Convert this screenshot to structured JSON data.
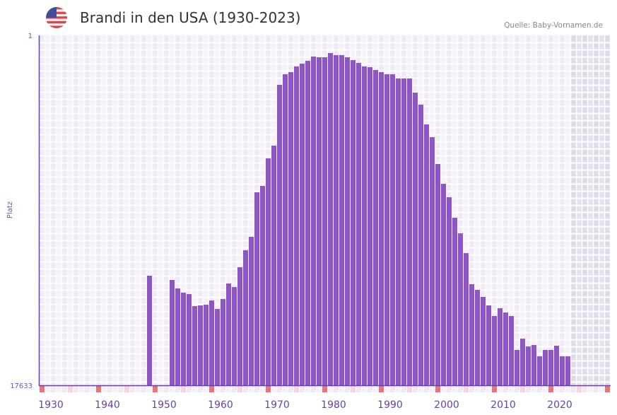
{
  "header": {
    "title": "Brandi in den USA (1930-2023)",
    "source": "Quelle: Baby-Vornamen.de",
    "flag_icon": "us-flag-icon"
  },
  "colors": {
    "bar": "#8e55c7",
    "axis": "#6a3fa8",
    "decade_marker": "#e8747c",
    "half_decade_marker": "#f5d5de",
    "future_shade": "#e2dcec"
  },
  "chart_data": {
    "type": "bar",
    "title": "Brandi in den USA (1930-2023)",
    "xlabel": "",
    "ylabel": "Platz",
    "y_inverted": true,
    "ylim": [
      1,
      17633
    ],
    "y_ticks": [
      "1",
      "17633"
    ],
    "xlim": [
      1928,
      2028
    ],
    "x_ticks": [
      "1930",
      "1940",
      "1950",
      "1960",
      "1970",
      "1980",
      "1990",
      "2000",
      "2010",
      "2020"
    ],
    "future_from_year": 2022,
    "grid": true,
    "years": [
      1947,
      1951,
      1952,
      1953,
      1954,
      1955,
      1956,
      1957,
      1958,
      1959,
      1960,
      1961,
      1962,
      1963,
      1964,
      1965,
      1966,
      1967,
      1968,
      1969,
      1970,
      1971,
      1972,
      1973,
      1974,
      1975,
      1976,
      1977,
      1978,
      1979,
      1980,
      1981,
      1982,
      1983,
      1984,
      1985,
      1986,
      1987,
      1988,
      1989,
      1990,
      1991,
      1992,
      1993,
      1994,
      1995,
      1996,
      1997,
      1998,
      1999,
      2000,
      2001,
      2002,
      2003,
      2004,
      2005,
      2006,
      2007,
      2008,
      2009,
      2010,
      2011,
      2012,
      2013,
      2014,
      2015,
      2016,
      2017,
      2018,
      2019,
      2020,
      2021
    ],
    "ranks": [
      12112,
      12325,
      12753,
      12966,
      13038,
      13643,
      13608,
      13572,
      13359,
      13786,
      13287,
      12503,
      12681,
      11684,
      10829,
      10152,
      7908,
      7588,
      6198,
      5557,
      2494,
      1960,
      1853,
      1568,
      1426,
      1283,
      1069,
      1105,
      1105,
      891,
      998,
      998,
      1105,
      1248,
      1390,
      1568,
      1604,
      1746,
      1853,
      1960,
      1960,
      2174,
      2174,
      2174,
      2886,
      3492,
      4489,
      5130,
      6484,
      7481,
      8158,
      9191,
      9975,
      10972,
      12539,
      12824,
      13180,
      13608,
      14142,
      13751,
      13965,
      14142,
      15852,
      15282,
      15674,
      15603,
      16173,
      15852,
      15852,
      15638,
      16173,
      16173
    ]
  }
}
